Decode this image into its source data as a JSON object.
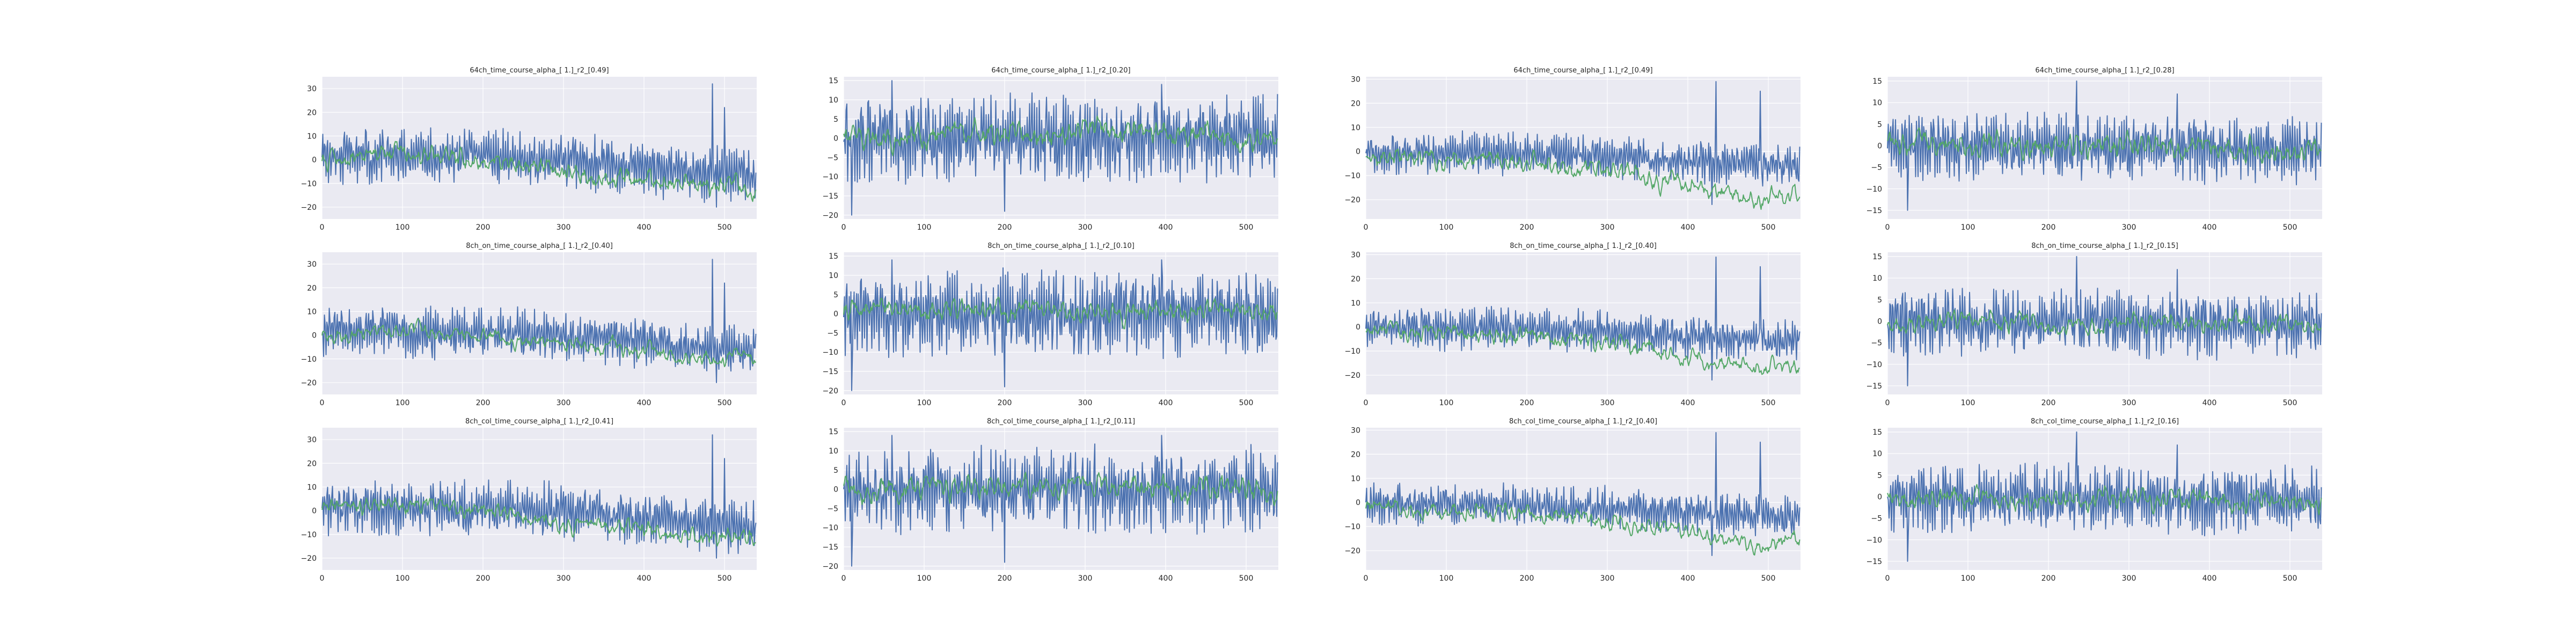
{
  "colors": {
    "background": "#eaeaf2",
    "grid": "#ffffff",
    "series_blue": "#4c72b0",
    "series_green": "#55a868"
  },
  "chart_data": [
    {
      "type": "line",
      "title": "64ch_time_course_alpha_[ 1.]_r2_[0.49]",
      "xlim": [
        0,
        540
      ],
      "ylim": [
        -25,
        35
      ],
      "xticks": [
        0,
        100,
        200,
        300,
        400,
        500
      ],
      "yticks": [
        -20,
        -10,
        0,
        10,
        20,
        30
      ],
      "xticklabels": [
        "0",
        "100",
        "200",
        "300",
        "400",
        "500"
      ],
      "yticklabels": [
        "−20",
        "−10",
        "0",
        "10",
        "20",
        "30"
      ],
      "grid": true,
      "profile": {
        "n": 540,
        "blue_amp": 11,
        "green_amp": 4,
        "blue_trend": [
          [
            0,
            2
          ],
          [
            300,
            0
          ],
          [
            460,
            -5
          ],
          [
            540,
            -8
          ]
        ],
        "green_trend": [
          [
            0,
            0
          ],
          [
            120,
            2
          ],
          [
            300,
            -5
          ],
          [
            460,
            -10
          ],
          [
            540,
            -12
          ]
        ],
        "spikes": [
          [
            485,
            32
          ],
          [
            490,
            -20
          ],
          [
            500,
            22
          ]
        ],
        "seed": 11
      }
    },
    {
      "type": "line",
      "title": "64ch_time_course_alpha_[ 1.]_r2_[0.20]",
      "xlim": [
        0,
        540
      ],
      "ylim": [
        -21,
        16
      ],
      "xticks": [
        0,
        100,
        200,
        300,
        400,
        500
      ],
      "yticks": [
        -20,
        -15,
        -10,
        -5,
        0,
        5,
        10,
        15
      ],
      "xticklabels": [
        "0",
        "100",
        "200",
        "300",
        "400",
        "500"
      ],
      "yticklabels": [
        "−20",
        "−15",
        "−10",
        "−5",
        "0",
        "5",
        "10",
        "15"
      ],
      "grid": true,
      "profile": {
        "n": 540,
        "blue_amp": 10,
        "green_amp": 3,
        "blue_trend": [
          [
            0,
            0
          ],
          [
            540,
            0
          ]
        ],
        "green_trend": [
          [
            0,
            0
          ],
          [
            200,
            1
          ],
          [
            400,
            2
          ],
          [
            540,
            0
          ]
        ],
        "spikes": [
          [
            10,
            -20
          ],
          [
            60,
            15
          ],
          [
            200,
            -19
          ],
          [
            395,
            14
          ]
        ],
        "seed": 22
      }
    },
    {
      "type": "line",
      "title": "64ch_time_course_alpha_[ 1.]_r2_[0.49]",
      "xlim": [
        0,
        540
      ],
      "ylim": [
        -28,
        31
      ],
      "xticks": [
        0,
        100,
        200,
        300,
        400,
        500
      ],
      "yticks": [
        -20,
        -10,
        0,
        10,
        20,
        30
      ],
      "xticklabels": [
        "0",
        "100",
        "200",
        "300",
        "400",
        "500"
      ],
      "yticklabels": [
        "−20",
        "−10",
        "0",
        "10",
        "20",
        "30"
      ],
      "grid": true,
      "profile": {
        "n": 540,
        "blue_amp": 8,
        "green_amp": 4,
        "blue_trend": [
          [
            0,
            0
          ],
          [
            300,
            -2
          ],
          [
            540,
            -6
          ]
        ],
        "green_trend": [
          [
            0,
            -2
          ],
          [
            200,
            -5
          ],
          [
            350,
            -10
          ],
          [
            480,
            -20
          ],
          [
            540,
            -18
          ]
        ],
        "spikes": [
          [
            435,
            29
          ],
          [
            430,
            -22
          ],
          [
            490,
            25
          ]
        ],
        "seed": 33
      }
    },
    {
      "type": "line",
      "title": "64ch_time_course_alpha_[ 1.]_r2_[0.28]",
      "xlim": [
        0,
        540
      ],
      "ylim": [
        -17,
        16
      ],
      "xticks": [
        0,
        100,
        200,
        300,
        400,
        500
      ],
      "yticks": [
        -15,
        -10,
        -5,
        0,
        5,
        10,
        15
      ],
      "xticklabels": [
        "0",
        "100",
        "200",
        "300",
        "400",
        "500"
      ],
      "yticklabels": [
        "−15",
        "−10",
        "−5",
        "0",
        "5",
        "10",
        "15"
      ],
      "grid": true,
      "profile": {
        "n": 540,
        "blue_amp": 7,
        "green_amp": 2.5,
        "blue_trend": [
          [
            0,
            0
          ],
          [
            540,
            -1
          ]
        ],
        "green_trend": [
          [
            0,
            0
          ],
          [
            300,
            0
          ],
          [
            540,
            -1
          ]
        ],
        "spikes": [
          [
            235,
            15
          ],
          [
            25,
            -15
          ],
          [
            360,
            12
          ]
        ],
        "seed": 44
      }
    },
    {
      "type": "line",
      "title": "8ch_on_time_course_alpha_[ 1.]_r2_[0.40]",
      "xlim": [
        0,
        540
      ],
      "ylim": [
        -25,
        35
      ],
      "xticks": [
        0,
        100,
        200,
        300,
        400,
        500
      ],
      "yticks": [
        -20,
        -10,
        0,
        10,
        20,
        30
      ],
      "xticklabels": [
        "0",
        "100",
        "200",
        "300",
        "400",
        "500"
      ],
      "yticklabels": [
        "−20",
        "−10",
        "0",
        "10",
        "20",
        "30"
      ],
      "grid": true,
      "profile": {
        "n": 540,
        "blue_amp": 10,
        "green_amp": 3,
        "blue_trend": [
          [
            0,
            2
          ],
          [
            300,
            0
          ],
          [
            460,
            -5
          ],
          [
            540,
            -7
          ]
        ],
        "green_trend": [
          [
            0,
            0
          ],
          [
            120,
            3
          ],
          [
            300,
            -4
          ],
          [
            460,
            -9
          ],
          [
            540,
            -10
          ]
        ],
        "spikes": [
          [
            485,
            32
          ],
          [
            490,
            -20
          ],
          [
            500,
            22
          ]
        ],
        "seed": 55
      }
    },
    {
      "type": "line",
      "title": "8ch_on_time_course_alpha_[ 1.]_r2_[0.10]",
      "xlim": [
        0,
        540
      ],
      "ylim": [
        -21,
        16
      ],
      "xticks": [
        0,
        100,
        200,
        300,
        400,
        500
      ],
      "yticks": [
        -20,
        -15,
        -10,
        -5,
        0,
        5,
        10,
        15
      ],
      "xticklabels": [
        "0",
        "100",
        "200",
        "300",
        "400",
        "500"
      ],
      "yticklabels": [
        "−20",
        "−15",
        "−10",
        "−5",
        "0",
        "5",
        "10",
        "15"
      ],
      "grid": true,
      "profile": {
        "n": 540,
        "blue_amp": 10,
        "green_amp": 2.5,
        "blue_trend": [
          [
            0,
            0
          ],
          [
            540,
            0
          ]
        ],
        "green_trend": [
          [
            0,
            1
          ],
          [
            540,
            1
          ]
        ],
        "spikes": [
          [
            10,
            -20
          ],
          [
            60,
            14
          ],
          [
            200,
            -19
          ],
          [
            395,
            14
          ]
        ],
        "seed": 66
      }
    },
    {
      "type": "line",
      "title": "8ch_on_time_course_alpha_[ 1.]_r2_[0.40]",
      "xlim": [
        0,
        540
      ],
      "ylim": [
        -28,
        31
      ],
      "xticks": [
        0,
        100,
        200,
        300,
        400,
        500
      ],
      "yticks": [
        -20,
        -10,
        0,
        10,
        20,
        30
      ],
      "xticklabels": [
        "0",
        "100",
        "200",
        "300",
        "400",
        "500"
      ],
      "yticklabels": [
        "−20",
        "−10",
        "0",
        "10",
        "20",
        "30"
      ],
      "grid": true,
      "profile": {
        "n": 540,
        "blue_amp": 8,
        "green_amp": 3.5,
        "blue_trend": [
          [
            0,
            0
          ],
          [
            300,
            -2
          ],
          [
            540,
            -6
          ]
        ],
        "green_trend": [
          [
            0,
            -2
          ],
          [
            200,
            -4
          ],
          [
            350,
            -9
          ],
          [
            480,
            -17
          ],
          [
            540,
            -16
          ]
        ],
        "spikes": [
          [
            435,
            29
          ],
          [
            430,
            -22
          ],
          [
            490,
            25
          ]
        ],
        "seed": 77
      }
    },
    {
      "type": "line",
      "title": "8ch_on_time_course_alpha_[ 1.]_r2_[0.15]",
      "xlim": [
        0,
        540
      ],
      "ylim": [
        -17,
        16
      ],
      "xticks": [
        0,
        100,
        200,
        300,
        400,
        500
      ],
      "yticks": [
        -15,
        -10,
        -5,
        0,
        5,
        10,
        15
      ],
      "xticklabels": [
        "0",
        "100",
        "200",
        "300",
        "400",
        "500"
      ],
      "yticklabels": [
        "−15",
        "−10",
        "−5",
        "0",
        "5",
        "10",
        "15"
      ],
      "grid": true,
      "profile": {
        "n": 540,
        "blue_amp": 7,
        "green_amp": 2,
        "blue_trend": [
          [
            0,
            0
          ],
          [
            540,
            -1
          ]
        ],
        "green_trend": [
          [
            0,
            0
          ],
          [
            540,
            -1
          ]
        ],
        "spikes": [
          [
            235,
            15
          ],
          [
            25,
            -15
          ],
          [
            360,
            12
          ]
        ],
        "seed": 88
      }
    },
    {
      "type": "line",
      "title": "8ch_col_time_course_alpha_[ 1.]_r2_[0.41]",
      "xlim": [
        0,
        540
      ],
      "ylim": [
        -25,
        35
      ],
      "xticks": [
        0,
        100,
        200,
        300,
        400,
        500
      ],
      "yticks": [
        -20,
        -10,
        0,
        10,
        20,
        30
      ],
      "xticklabels": [
        "0",
        "100",
        "200",
        "300",
        "400",
        "500"
      ],
      "yticklabels": [
        "−20",
        "−10",
        "0",
        "10",
        "20",
        "30"
      ],
      "grid": true,
      "profile": {
        "n": 540,
        "blue_amp": 10.5,
        "green_amp": 3.5,
        "blue_trend": [
          [
            0,
            2
          ],
          [
            300,
            0
          ],
          [
            460,
            -5
          ],
          [
            540,
            -8
          ]
        ],
        "green_trend": [
          [
            0,
            0
          ],
          [
            120,
            3
          ],
          [
            300,
            -5
          ],
          [
            460,
            -10
          ],
          [
            540,
            -11
          ]
        ],
        "spikes": [
          [
            485,
            32
          ],
          [
            490,
            -20
          ],
          [
            500,
            22
          ]
        ],
        "seed": 99
      }
    },
    {
      "type": "line",
      "title": "8ch_col_time_course_alpha_[ 1.]_r2_[0.11]",
      "xlim": [
        0,
        540
      ],
      "ylim": [
        -21,
        16
      ],
      "xticks": [
        0,
        100,
        200,
        300,
        400,
        500
      ],
      "yticks": [
        -20,
        -15,
        -10,
        -5,
        0,
        5,
        10,
        15
      ],
      "xticklabels": [
        "0",
        "100",
        "200",
        "300",
        "400",
        "500"
      ],
      "yticklabels": [
        "−20",
        "−15",
        "−10",
        "−5",
        "0",
        "5",
        "10",
        "15"
      ],
      "grid": true,
      "profile": {
        "n": 540,
        "blue_amp": 10,
        "green_amp": 2.8,
        "blue_trend": [
          [
            0,
            0
          ],
          [
            540,
            0
          ]
        ],
        "green_trend": [
          [
            0,
            0
          ],
          [
            300,
            1
          ],
          [
            540,
            0
          ]
        ],
        "spikes": [
          [
            10,
            -20
          ],
          [
            60,
            14
          ],
          [
            200,
            -19
          ],
          [
            395,
            14
          ]
        ],
        "seed": 111
      }
    },
    {
      "type": "line",
      "title": "8ch_col_time_course_alpha_[ 1.]_r2_[0.40]",
      "xlim": [
        0,
        540
      ],
      "ylim": [
        -28,
        31
      ],
      "xticks": [
        0,
        100,
        200,
        300,
        400,
        500
      ],
      "yticks": [
        -20,
        -10,
        0,
        10,
        20,
        30
      ],
      "xticklabels": [
        "0",
        "100",
        "200",
        "300",
        "400",
        "500"
      ],
      "yticklabels": [
        "−20",
        "−10",
        "0",
        "10",
        "20",
        "30"
      ],
      "grid": true,
      "profile": {
        "n": 540,
        "blue_amp": 8,
        "green_amp": 3.5,
        "blue_trend": [
          [
            0,
            0
          ],
          [
            300,
            -2
          ],
          [
            540,
            -6
          ]
        ],
        "green_trend": [
          [
            0,
            -2
          ],
          [
            200,
            -5
          ],
          [
            350,
            -9
          ],
          [
            480,
            -18
          ],
          [
            540,
            -16
          ]
        ],
        "spikes": [
          [
            435,
            29
          ],
          [
            430,
            -22
          ],
          [
            490,
            25
          ]
        ],
        "seed": 122
      }
    },
    {
      "type": "line",
      "title": "8ch_col_time_course_alpha_[ 1.]_r2_[0.16]",
      "xlim": [
        0,
        540
      ],
      "ylim": [
        -17,
        16
      ],
      "xticks": [
        0,
        100,
        200,
        300,
        400,
        500
      ],
      "yticks": [
        -15,
        -10,
        -5,
        0,
        5,
        10,
        15
      ],
      "xticklabels": [
        "0",
        "100",
        "200",
        "300",
        "400",
        "500"
      ],
      "yticklabels": [
        "−15",
        "−10",
        "−5",
        "0",
        "5",
        "10",
        "15"
      ],
      "grid": true,
      "profile": {
        "n": 540,
        "blue_amp": 7,
        "green_amp": 2.2,
        "blue_trend": [
          [
            0,
            0
          ],
          [
            540,
            -1
          ]
        ],
        "green_trend": [
          [
            0,
            0
          ],
          [
            540,
            -1
          ]
        ],
        "spikes": [
          [
            235,
            15
          ],
          [
            25,
            -15
          ],
          [
            360,
            12
          ]
        ],
        "seed": 133
      }
    }
  ]
}
